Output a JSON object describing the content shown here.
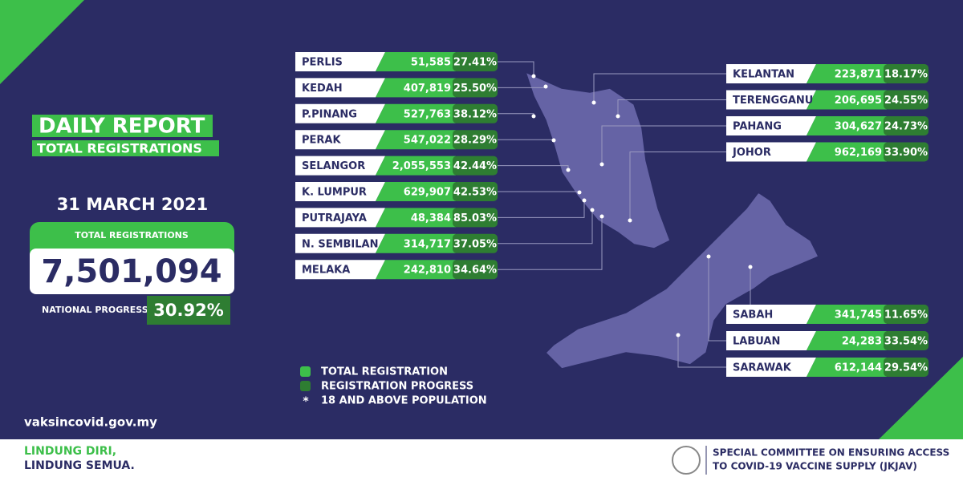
{
  "header": {
    "title": "DAILY REPORT",
    "subtitle": "TOTAL REGISTRATIONS",
    "date": "31 MARCH 2021"
  },
  "summary": {
    "total_label": "TOTAL REGISTRATIONS",
    "total": "7,501,094",
    "progress_label": "NATIONAL PROGRESS",
    "progress": "30.92%"
  },
  "website": "vaksincovid.gov.my",
  "left_states": [
    {
      "name": "PERLIS",
      "registrations": "51,585",
      "progress": "27.41%"
    },
    {
      "name": "KEDAH",
      "registrations": "407,819",
      "progress": "25.50%"
    },
    {
      "name": "P.PINANG",
      "registrations": "527,763",
      "progress": "38.12%"
    },
    {
      "name": "PERAK",
      "registrations": "547,022",
      "progress": "28.29%"
    },
    {
      "name": "SELANGOR",
      "registrations": "2,055,553",
      "progress": "42.44%"
    },
    {
      "name": "K. LUMPUR",
      "registrations": "629,907",
      "progress": "42.53%"
    },
    {
      "name": "PUTRAJAYA",
      "registrations": "48,384",
      "progress": "85.03%"
    },
    {
      "name": "N. SEMBILAN",
      "registrations": "314,717",
      "progress": "37.05%"
    },
    {
      "name": "MELAKA",
      "registrations": "242,810",
      "progress": "34.64%"
    }
  ],
  "east_states": [
    {
      "name": "KELANTAN",
      "registrations": "223,871",
      "progress": "18.17%"
    },
    {
      "name": "TERENGGANU",
      "registrations": "206,695",
      "progress": "24.55%"
    },
    {
      "name": "PAHANG",
      "registrations": "304,627",
      "progress": "24.73%"
    },
    {
      "name": "JOHOR",
      "registrations": "962,169",
      "progress": "33.90%"
    }
  ],
  "borneo_states": [
    {
      "name": "SABAH",
      "registrations": "341,745",
      "progress": "11.65%"
    },
    {
      "name": "LABUAN",
      "registrations": "24,283",
      "progress": "33.54%"
    },
    {
      "name": "SARAWAK",
      "registrations": "612,144",
      "progress": "29.54%"
    }
  ],
  "legend": [
    {
      "label": "TOTAL REGISTRATION"
    },
    {
      "label": "REGISTRATION PROGRESS"
    },
    {
      "label": "18 AND ABOVE POPULATION",
      "marker": "*"
    }
  ],
  "footer": {
    "slogan": [
      "LINDUNG DIRI,",
      "LINDUNG SEMUA."
    ],
    "committee": [
      "SPECIAL COMMITTEE ON ENSURING ACCESS",
      "TO COVID-19 VACCINE SUPPLY (JKJAV)"
    ]
  }
}
